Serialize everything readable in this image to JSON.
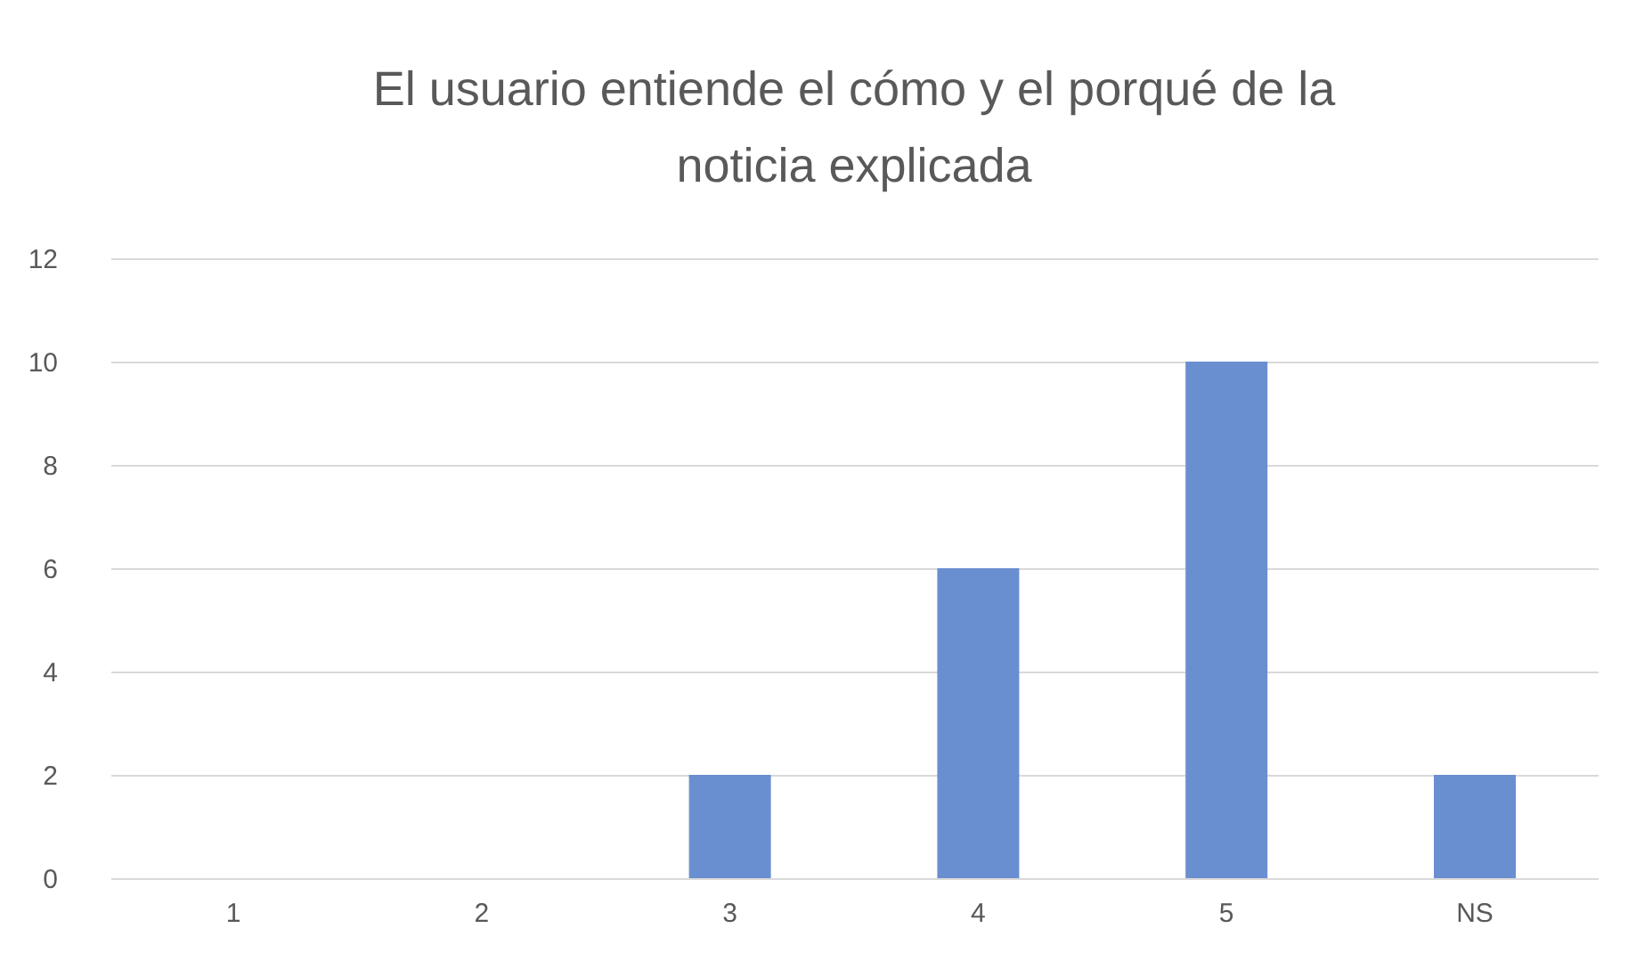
{
  "chart_data": {
    "type": "bar",
    "title": "El usuario entiende el cómo y el porqué de la noticia explicada",
    "categories": [
      "1",
      "2",
      "3",
      "4",
      "5",
      "NS"
    ],
    "values": [
      0,
      0,
      2,
      6,
      10,
      2
    ],
    "color": "#6a8fd0",
    "ylim": [
      0,
      12
    ],
    "yticks": [
      0,
      2,
      4,
      6,
      8,
      10,
      12
    ],
    "grid": "y"
  }
}
